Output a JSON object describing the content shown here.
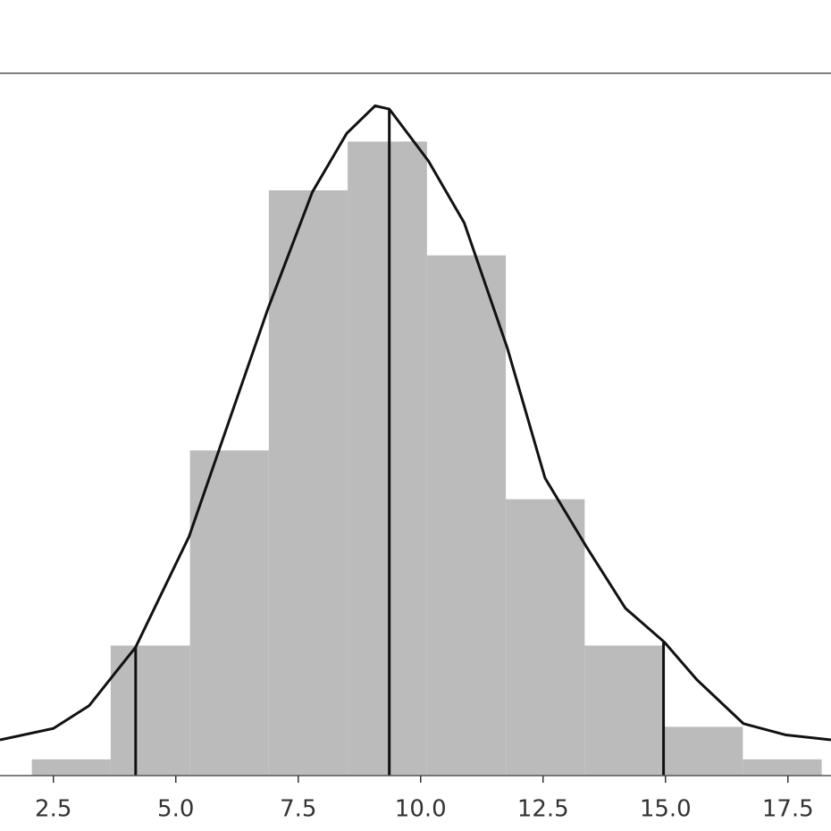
{
  "chart_data": {
    "type": "histogram",
    "bins": [
      2.06,
      3.67,
      5.29,
      6.9,
      8.51,
      10.13,
      11.74,
      13.35,
      14.96,
      16.58,
      18.19
    ],
    "counts": [
      1,
      8,
      20,
      36,
      39,
      32,
      17,
      8,
      3,
      1
    ],
    "color": "#bbbbbb",
    "kde": {
      "color": "#111111",
      "x": [
        1.41,
        2.5,
        3.23,
        4.18,
        5.27,
        6.88,
        7.79,
        8.49,
        9.07,
        9.36,
        10.16,
        10.89,
        11.77,
        12.54,
        13.38,
        14.18,
        14.98,
        15.64,
        16.59,
        17.46,
        18.38
      ],
      "y": [
        2.2,
        2.9,
        4.3,
        7.9,
        14.7,
        28.7,
        35.9,
        39.5,
        41.2,
        41.0,
        37.8,
        34.0,
        26.3,
        18.3,
        14.1,
        10.3,
        8.2,
        5.9,
        3.2,
        2.5,
        2.2
      ]
    },
    "vlines": {
      "x": [
        4.18,
        9.36,
        14.96
      ],
      "y": [
        7.9,
        41.0,
        8.2
      ]
    },
    "xlim": [
      1.41,
      18.38
    ],
    "ylim": [
      0,
      43.2
    ],
    "xticks": [
      2.5,
      {
        "value": 5,
        "label": "5.0"
      },
      7.5,
      {
        "value": 10,
        "label": "10.0"
      },
      12.5,
      {
        "value": 15,
        "label": "15.0"
      },
      17.5
    ]
  }
}
